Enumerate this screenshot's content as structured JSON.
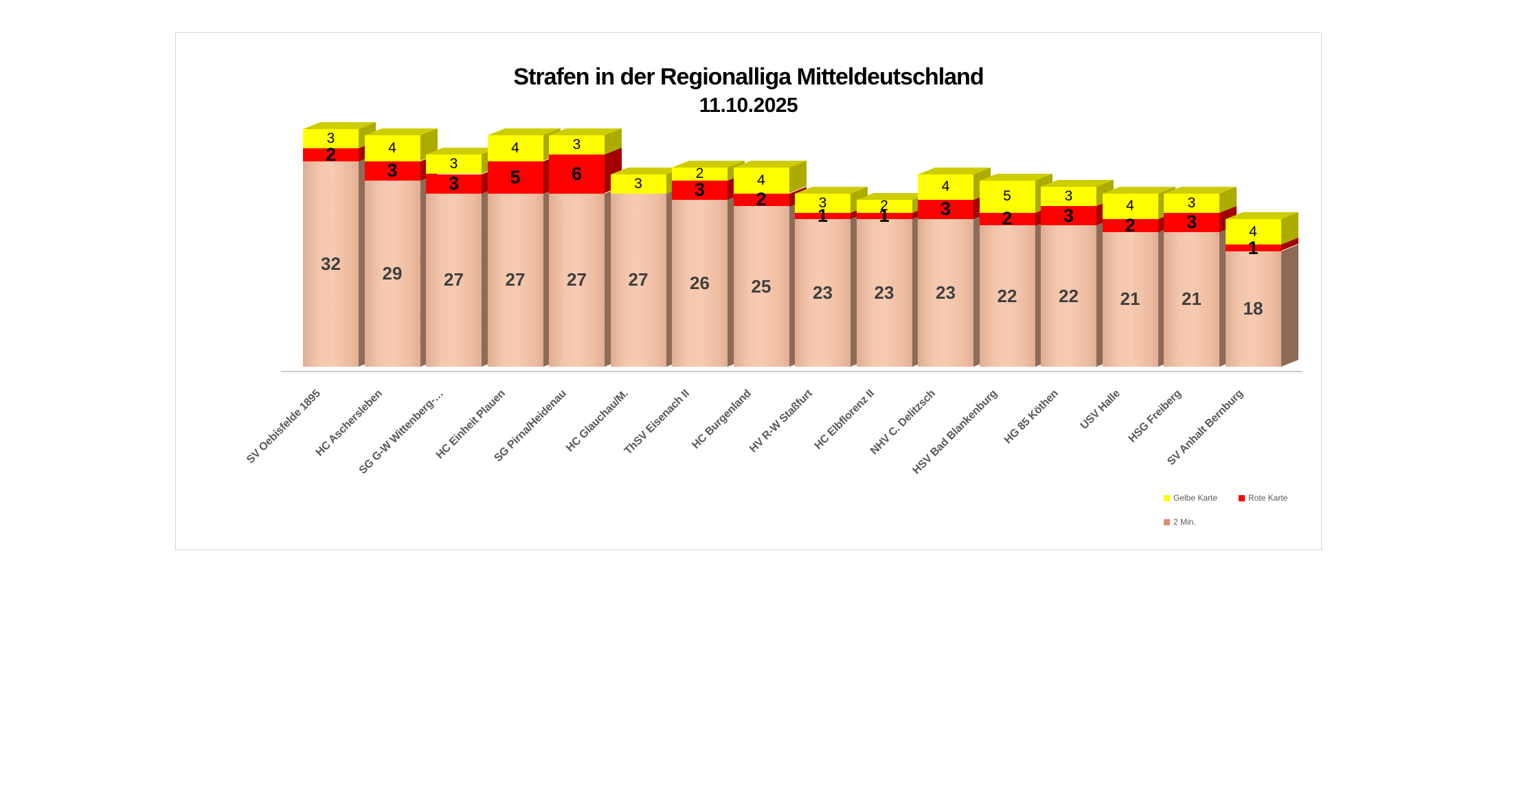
{
  "title": {
    "line1": "Strafen in der Regionalliga Mitteldeutschland",
    "line2": "11.10.2025"
  },
  "legend": {
    "items": [
      {
        "label": "Gelbe Karte",
        "color": "#ffff00"
      },
      {
        "label": "Rote Karte",
        "color": "#ff0000"
      },
      {
        "label": "2 Min.",
        "color": "#de8f72"
      }
    ]
  },
  "colors": {
    "min2_front": "#f2c3a8",
    "min2_side": "#8e6b57",
    "rot_front": "#fe0000",
    "rot_side": "#a30000",
    "gelb_front": "#ffff00",
    "gelb_side": "#abab00",
    "gelb_top": "#cdcd00",
    "axis_line": "#c9c9c9",
    "box_border": "#d6d6d6",
    "category_text": "#595959",
    "min2_value_text": "#3f3f3f"
  },
  "chart_data": {
    "type": "bar",
    "stacked": true,
    "effect_3d": true,
    "title": "Strafen in der Regionalliga Mitteldeutschland 11.10.2025",
    "xlabel": "",
    "ylabel": "",
    "value_labels": true,
    "legend_position": "bottom-right",
    "axes_hidden": true,
    "categories": [
      "SV Oebisfelde 1895",
      "HC Aschersleben",
      "SG G-W Wittenberg-…",
      "HC Einheit Plauen",
      "SG Pirna/Heidenau",
      "HC Glauchau/M.",
      "ThSV Eisenach II",
      "HC Burgenland",
      "HV R-W Staßfurt",
      "HC Elbflorenz II",
      "NHV C. Delitzsch",
      "HSV Bad Blankenburg",
      "HG 85 Köthen",
      "USV Halle",
      "HSG Freiberg",
      "SV Anhalt Bernburg"
    ],
    "series": [
      {
        "name": "2 Min.",
        "color": "#f2c3a8",
        "values": [
          32,
          29,
          27,
          27,
          27,
          27,
          26,
          25,
          23,
          23,
          23,
          22,
          22,
          21,
          21,
          18
        ]
      },
      {
        "name": "Rote Karte",
        "color": "#ff0000",
        "values": [
          2,
          3,
          3,
          5,
          6,
          0,
          3,
          2,
          1,
          1,
          3,
          2,
          3,
          2,
          3,
          1
        ]
      },
      {
        "name": "Gelbe Karte",
        "color": "#ffff00",
        "values": [
          3,
          4,
          3,
          4,
          3,
          3,
          2,
          4,
          3,
          2,
          4,
          5,
          3,
          4,
          3,
          4
        ]
      }
    ],
    "totals": [
      37,
      36,
      33,
      36,
      36,
      30,
      31,
      31,
      27,
      26,
      30,
      29,
      28,
      27,
      27,
      23
    ]
  }
}
